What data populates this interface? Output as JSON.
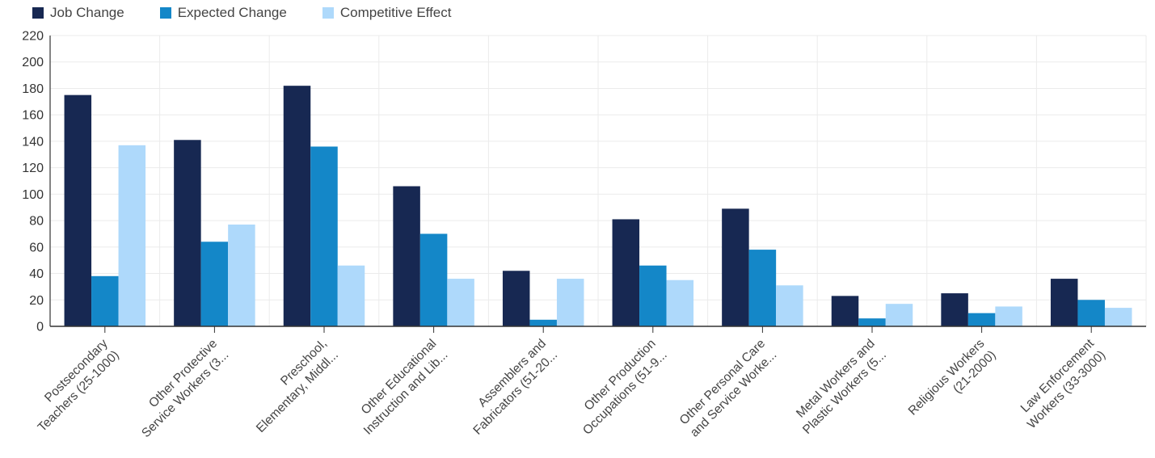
{
  "chart_data": {
    "type": "bar",
    "title": "",
    "xlabel": "",
    "ylabel": "",
    "ylim": [
      0,
      220
    ],
    "yticks": [
      0,
      20,
      40,
      60,
      80,
      100,
      120,
      140,
      160,
      180,
      200,
      220
    ],
    "grid": true,
    "legend_position": "top-left",
    "categories": [
      [
        "Postsecondary",
        "Teachers (25-1000)"
      ],
      [
        "Other Protective",
        "Service Workers (3..."
      ],
      [
        "Preschool,",
        "Elementary, Middl..."
      ],
      [
        "Other Educational",
        "Instruction and Lib..."
      ],
      [
        "Assemblers and",
        "Fabricators (51-20..."
      ],
      [
        "Other Production",
        "Occupations (51-9..."
      ],
      [
        "Other Personal Care",
        "and Service Worke..."
      ],
      [
        "Metal Workers and",
        "Plastic Workers (5..."
      ],
      [
        "Religious Workers",
        "(21-2000)"
      ],
      [
        "Law Enforcement",
        "Workers (33-3000)"
      ]
    ],
    "series": [
      {
        "name": "Job Change",
        "color": "#172852",
        "values": [
          175,
          141,
          182,
          106,
          42,
          81,
          89,
          23,
          25,
          36
        ]
      },
      {
        "name": "Expected Change",
        "color": "#1487c8",
        "values": [
          38,
          64,
          136,
          70,
          5,
          46,
          58,
          6,
          10,
          20
        ]
      },
      {
        "name": "Competitive Effect",
        "color": "#aed9fb",
        "values": [
          137,
          77,
          46,
          36,
          36,
          35,
          31,
          17,
          15,
          14
        ]
      }
    ]
  }
}
